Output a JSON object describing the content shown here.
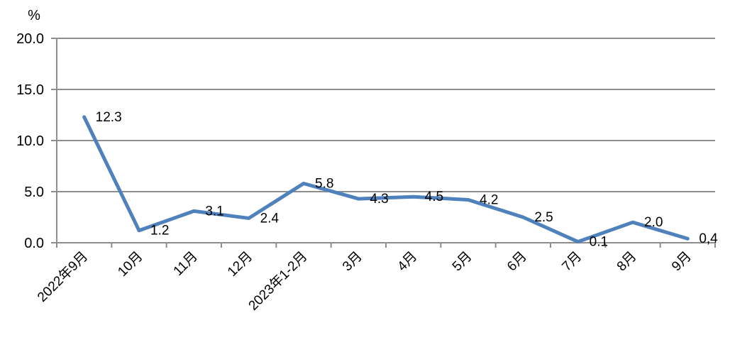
{
  "chart_data": {
    "type": "line",
    "title": "",
    "unit_label": "%",
    "categories": [
      "2022年9月",
      "10月",
      "11月",
      "12月",
      "2023年1-2月",
      "3月",
      "4月",
      "5月",
      "6月",
      "7月",
      "8月",
      "9月"
    ],
    "values": [
      12.3,
      1.2,
      3.1,
      2.4,
      5.8,
      4.3,
      4.5,
      4.2,
      2.5,
      0.1,
      2.0,
      0.4
    ],
    "point_labels": [
      "12.3",
      "1.2",
      "3.1",
      "2.4",
      "5.8",
      "4.3",
      "4.5",
      "4.2",
      "2.5",
      "0.1",
      "2.0",
      "0,4"
    ],
    "ylim": [
      0,
      20
    ],
    "ytick_values": [
      0,
      5,
      10,
      15,
      20
    ],
    "ytick_labels": [
      "0.0",
      "5.0",
      "10.0",
      "15.0",
      "20.0"
    ],
    "grid": true,
    "legend": false,
    "x_label_rotation": -45,
    "line_color": "#4f81bd",
    "grid_color": "#8e8e8e",
    "axis_color": "#8e8e8e",
    "text_color": "#000000",
    "background_color": "#ffffff"
  }
}
